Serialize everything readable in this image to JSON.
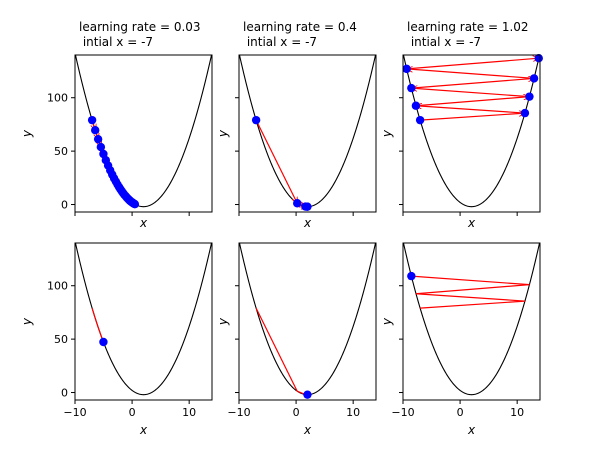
{
  "chart_data": [
    {
      "type": "line",
      "title_lines": [
        "learning rate = 0.03",
        " intial x = -7"
      ],
      "xlabel": "x",
      "ylabel": "y",
      "xlim": [
        -10,
        14
      ],
      "ylim": [
        -7,
        140
      ],
      "xticks": [
        -10,
        0,
        10
      ],
      "yticks": [
        0,
        50,
        100
      ],
      "show_xtick_labels": false,
      "show_ytick_labels": true,
      "curve": {
        "name": "y = (x - 2)^2 - 2",
        "color": "#000000"
      },
      "iterates": [
        [
          -7,
          79
        ],
        [
          -6.46,
          69.6
        ],
        [
          -5.95,
          61.2
        ],
        [
          -5.47,
          53.8
        ],
        [
          -5.02,
          47.3
        ],
        [
          -4.6,
          41.5
        ],
        [
          -4.2,
          36.5
        ],
        [
          -3.83,
          32
        ],
        [
          -3.48,
          28
        ],
        [
          -3.15,
          24.5
        ],
        [
          -2.84,
          21.5
        ],
        [
          -2.55,
          18.7
        ],
        [
          -2.28,
          16.3
        ],
        [
          -2.02,
          14.2
        ],
        [
          -1.78,
          12.3
        ],
        [
          -1.55,
          10.6
        ],
        [
          -1.34,
          9.1
        ],
        [
          -1.14,
          7.9
        ],
        [
          -0.95,
          6.7
        ],
        [
          -0.77,
          5.7
        ],
        [
          -0.61,
          4.8
        ],
        [
          -0.45,
          4
        ],
        [
          -0.31,
          3.3
        ],
        [
          -0.17,
          2.7
        ],
        [
          -0.04,
          2.2
        ],
        [
          0.08,
          1.7
        ],
        [
          0.19,
          1.3
        ],
        [
          0.3,
          0.9
        ],
        [
          0.4,
          0.6
        ],
        [
          0.49,
          0.3
        ]
      ],
      "points_shown": "all",
      "arrow_color": "#ff0000",
      "point_color": "#0000ff"
    },
    {
      "type": "line",
      "title_lines": [
        "learning rate = 0.4",
        " intial x = -7"
      ],
      "xlabel": "x",
      "ylabel": "y",
      "xlim": [
        -10,
        14
      ],
      "ylim": [
        -7,
        140
      ],
      "xticks": [
        -10,
        0,
        10
      ],
      "yticks": [
        0,
        50,
        100
      ],
      "show_xtick_labels": false,
      "show_ytick_labels": false,
      "curve": {
        "name": "y = (x - 2)^2 - 2",
        "color": "#000000"
      },
      "iterates": [
        [
          -7,
          79
        ],
        [
          0.2,
          1.2
        ],
        [
          1.64,
          -1.9
        ],
        [
          1.93,
          -2
        ],
        [
          1.99,
          -2
        ]
      ],
      "points_shown": "all",
      "arrow_color": "#ff0000",
      "point_color": "#0000ff"
    },
    {
      "type": "line",
      "title_lines": [
        "learning rate = 1.02",
        " intial x = -7"
      ],
      "xlabel": "x",
      "ylabel": "y",
      "xlim": [
        -10,
        14
      ],
      "ylim": [
        -7,
        140
      ],
      "xticks": [
        -10,
        0,
        10
      ],
      "yticks": [
        0,
        50,
        100
      ],
      "show_xtick_labels": false,
      "show_ytick_labels": false,
      "curve": {
        "name": "y = (x - 2)^2 - 2",
        "color": "#000000"
      },
      "iterates": [
        [
          -7,
          79
        ],
        [
          11.36,
          85.6
        ],
        [
          -7.74,
          92.5
        ],
        [
          12.15,
          101
        ],
        [
          -8.54,
          109
        ],
        [
          12.96,
          118.1
        ],
        [
          -9.36,
          127
        ],
        [
          13.78,
          137
        ]
      ],
      "points_shown": "all",
      "arrow_color": "#ff0000",
      "point_color": "#0000ff"
    },
    {
      "type": "line",
      "title_lines": [],
      "xlabel": "x",
      "ylabel": "y",
      "xlim": [
        -10,
        14
      ],
      "ylim": [
        -7,
        140
      ],
      "xticks": [
        -10,
        0,
        10
      ],
      "yticks": [
        0,
        50,
        100
      ],
      "show_xtick_labels": true,
      "show_ytick_labels": true,
      "curve": {
        "name": "y = (x - 2)^2 - 2",
        "color": "#000000"
      },
      "iterates": [
        [
          -7,
          79
        ],
        [
          -6.46,
          69.6
        ],
        [
          -5.95,
          61.2
        ],
        [
          -5.47,
          53.8
        ],
        [
          -5.02,
          47.3
        ]
      ],
      "points_shown": "last",
      "arrow_color": "#ff0000",
      "point_color": "#0000ff"
    },
    {
      "type": "line",
      "title_lines": [],
      "xlabel": "x",
      "ylabel": "y",
      "xlim": [
        -10,
        14
      ],
      "ylim": [
        -7,
        140
      ],
      "xticks": [
        -10,
        0,
        10
      ],
      "yticks": [
        0,
        50,
        100
      ],
      "show_xtick_labels": true,
      "show_ytick_labels": false,
      "curve": {
        "name": "y = (x - 2)^2 - 2",
        "color": "#000000"
      },
      "iterates": [
        [
          -7,
          79
        ],
        [
          0.2,
          1.2
        ],
        [
          1.64,
          -1.9
        ],
        [
          1.93,
          -2
        ],
        [
          1.99,
          -2
        ]
      ],
      "points_shown": "last",
      "arrow_color": "#ff0000",
      "point_color": "#0000ff"
    },
    {
      "type": "line",
      "title_lines": [],
      "xlabel": "x",
      "ylabel": "y",
      "xlim": [
        -10,
        14
      ],
      "ylim": [
        -7,
        140
      ],
      "xticks": [
        -10,
        0,
        10
      ],
      "yticks": [
        0,
        50,
        100
      ],
      "show_xtick_labels": true,
      "show_ytick_labels": false,
      "curve": {
        "name": "y = (x - 2)^2 - 2",
        "color": "#000000"
      },
      "iterates": [
        [
          -7,
          79
        ],
        [
          11.36,
          85.6
        ],
        [
          -7.74,
          92.5
        ],
        [
          12.15,
          101
        ],
        [
          -8.54,
          109
        ]
      ],
      "points_shown": "last",
      "arrow_color": "#ff0000",
      "point_color": "#0000ff"
    }
  ]
}
